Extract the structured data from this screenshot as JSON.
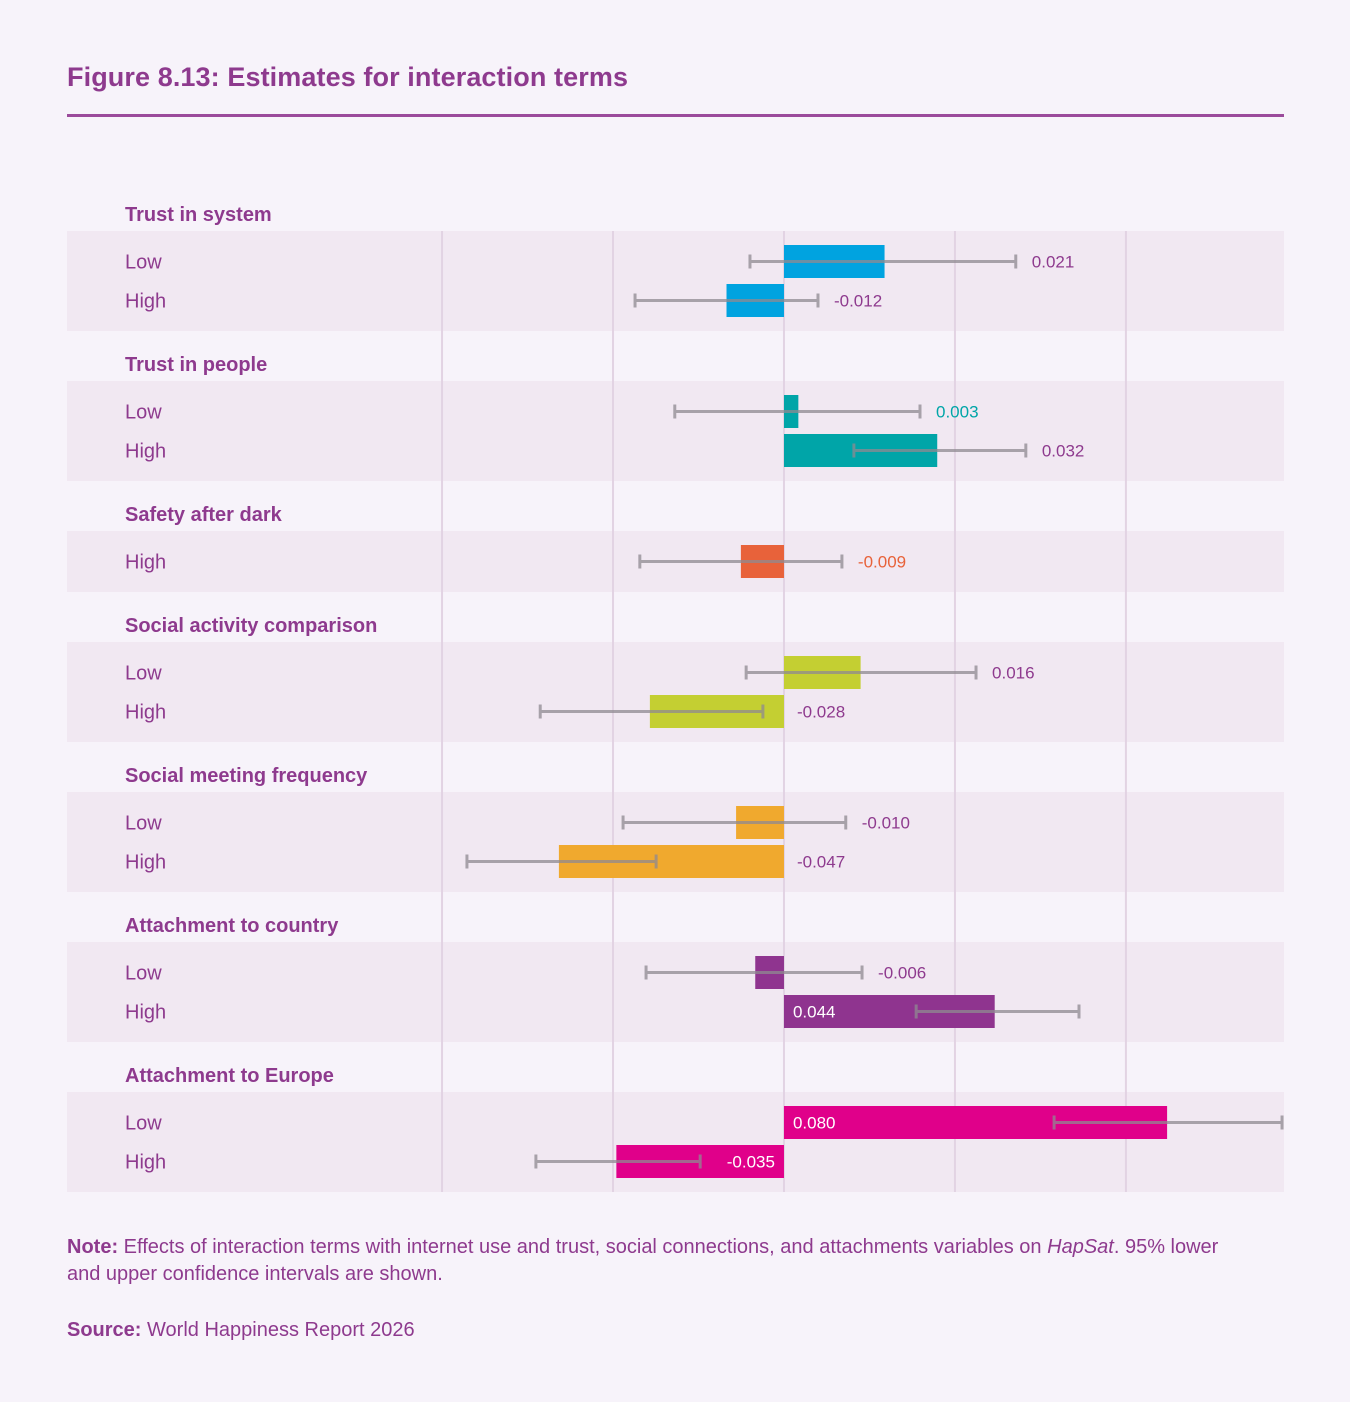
{
  "figure": {
    "title": "Figure 8.13: Estimates for interaction terms"
  },
  "colors": {
    "text": "#8e3a8e",
    "band": "#f1e8f2",
    "gridline": "#e2d3e3",
    "ci": "#a9a4aa",
    "trust_system": "#00a3e0",
    "trust_people": "#00a5a8",
    "safety": "#e8623a",
    "social_activity": "#c4cf32",
    "social_meeting": "#f0a92e",
    "attachment_country": "#8f348f",
    "attachment_europe": "#e0008a"
  },
  "chart_data": {
    "type": "bar",
    "orientation": "horizontal",
    "title": "Figure 8.13: Estimates for interaction terms",
    "xlabel": "",
    "ylabel": "",
    "xlim": [
      -0.0712,
      0.1042
    ],
    "gridlines": [
      -0.0714,
      -0.0357,
      0,
      0.0357,
      0.0714
    ],
    "grid": true,
    "legend": "none",
    "groups": [
      {
        "name": "Trust in system",
        "color_key": "trust_system",
        "items": [
          {
            "label": "Low",
            "value": 0.021,
            "label_text": "0.021",
            "ci": [
              -0.0071,
              0.0484
            ],
            "label_pos": "after-ci",
            "label_color": "text"
          },
          {
            "label": "High",
            "value": -0.012,
            "label_text": "-0.012",
            "ci": [
              -0.0311,
              0.0071
            ],
            "label_pos": "after-ci",
            "label_color": "text"
          }
        ]
      },
      {
        "name": "Trust in people",
        "color_key": "trust_people",
        "items": [
          {
            "label": "Low",
            "value": 0.003,
            "label_text": "0.003",
            "ci": [
              -0.0228,
              0.0284
            ],
            "label_pos": "after-ci",
            "label_color": "trust_people"
          },
          {
            "label": "High",
            "value": 0.032,
            "label_text": "0.032",
            "ci": [
              0.0146,
              0.0505
            ],
            "label_pos": "after-ci",
            "label_color": "text"
          }
        ]
      },
      {
        "name": "Safety after dark",
        "color_key": "safety",
        "items": [
          {
            "label": "High",
            "value": -0.009,
            "label_text": "-0.009",
            "ci": [
              -0.0301,
              0.0121
            ],
            "label_pos": "after-ci",
            "label_color": "safety"
          }
        ]
      },
      {
        "name": "Social activity comparison",
        "color_key": "social_activity",
        "items": [
          {
            "label": "Low",
            "value": 0.016,
            "label_text": "0.016",
            "ci": [
              -0.0079,
              0.0401
            ],
            "label_pos": "after-ci",
            "label_color": "text"
          },
          {
            "label": "High",
            "value": -0.028,
            "label_text": "-0.028",
            "ci": [
              -0.0509,
              -0.0044
            ],
            "label_pos": "after-zero",
            "label_color": "text"
          }
        ]
      },
      {
        "name": "Social meeting frequency",
        "color_key": "social_meeting",
        "items": [
          {
            "label": "Low",
            "value": -0.01,
            "label_text": "-0.010",
            "ci": [
              -0.0336,
              0.0129
            ],
            "label_pos": "after-ci",
            "label_color": "text"
          },
          {
            "label": "High",
            "value": -0.047,
            "label_text": "-0.047",
            "ci": [
              -0.0662,
              -0.0267
            ],
            "label_pos": "after-zero",
            "label_color": "text"
          }
        ]
      },
      {
        "name": "Attachment to country",
        "color_key": "attachment_country",
        "items": [
          {
            "label": "Low",
            "value": -0.006,
            "label_text": "-0.006",
            "ci": [
              -0.0288,
              0.0163
            ],
            "label_pos": "after-ci",
            "label_color": "text"
          },
          {
            "label": "High",
            "value": 0.044,
            "label_text": "0.044",
            "ci": [
              0.0276,
              0.0616
            ],
            "label_pos": "inside-start",
            "label_color": "white"
          }
        ]
      },
      {
        "name": "Attachment to Europe",
        "color_key": "attachment_europe",
        "items": [
          {
            "label": "Low",
            "value": 0.08,
            "label_text": "0.080",
            "ci": [
              0.0564,
              0.104
            ],
            "label_pos": "inside-start",
            "label_color": "white"
          },
          {
            "label": "High",
            "value": -0.035,
            "label_text": "-0.035",
            "ci": [
              -0.0518,
              -0.0175
            ],
            "label_pos": "inside-end",
            "label_color": "white"
          }
        ]
      }
    ]
  },
  "note": {
    "label": "Note:",
    "text_before": " Effects of interaction terms with internet use and trust, social connections, and attachments variables on ",
    "italic": "HapSat",
    "text_after": ". 95% lower and upper confidence intervals are shown."
  },
  "source": {
    "label": "Source:",
    "text": " World Happiness Report 2026"
  }
}
